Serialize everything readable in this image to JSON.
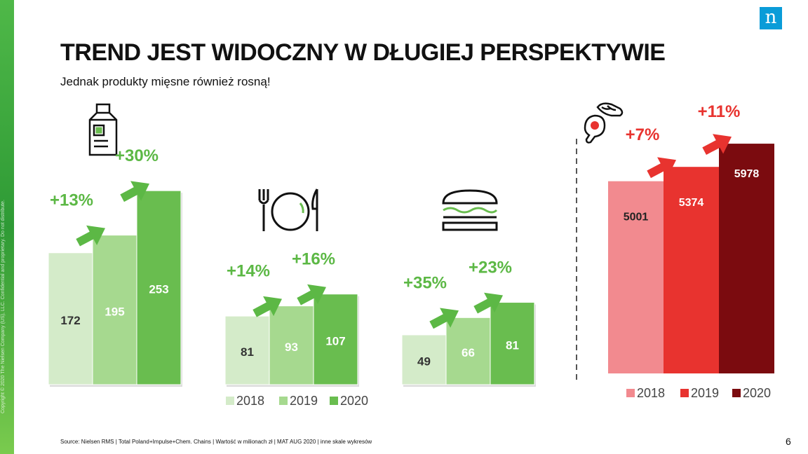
{
  "header": {
    "title": "TREND JEST WIDOCZNY W DŁUGIEJ PERSPEKTYWIE",
    "subtitle": "Jednak produkty mięsne również rosną!",
    "logo_letter": "n"
  },
  "footer": {
    "source": "Source: Nielsen RMS | Total Poland+Impulse+Chem. Chains | Wartość w milionach zł | MAT AUG 2020 | inne skale wykresów",
    "page_number": "6",
    "copyright": "Copyright © 2020 The Nielsen Company (US), LLC. Confidential and proprietary. Do not distribute."
  },
  "colors": {
    "green": [
      "#d4ebc9",
      "#a6d98f",
      "#69bd4f"
    ],
    "green_arrow": "#5cb845",
    "green_text": "#5cb845",
    "red": [
      "#f28a8f",
      "#e8332f",
      "#7b0b0f"
    ],
    "red_arrow": "#e8332f",
    "red_text": "#e8332f"
  },
  "icons": [
    "milk-carton-icon",
    "plate-cutlery-icon",
    "sandwich-icon",
    "meat-icon"
  ],
  "chart_data": [
    {
      "type": "bar",
      "categories": [
        "2018",
        "2019",
        "2020"
      ],
      "values": [
        172,
        195,
        253
      ],
      "growth_labels": [
        "+13%",
        "+30%"
      ],
      "ylim": [
        0,
        265
      ]
    },
    {
      "type": "bar",
      "categories": [
        "2018",
        "2019",
        "2020"
      ],
      "values": [
        81,
        93,
        107
      ],
      "growth_labels": [
        "+14%",
        "+16%"
      ],
      "ylim": [
        0,
        240
      ],
      "legend": [
        "2018",
        "2019",
        "2020"
      ],
      "legend_position": "bottom"
    },
    {
      "type": "bar",
      "categories": [
        "2018",
        "2019",
        "2020"
      ],
      "values": [
        49,
        66,
        81
      ],
      "growth_labels": [
        "+35%",
        "+23%"
      ],
      "ylim": [
        0,
        200
      ]
    },
    {
      "type": "bar",
      "categories": [
        "2018",
        "2019",
        "2020"
      ],
      "values": [
        5001,
        5374,
        5978
      ],
      "growth_labels": [
        "+7%",
        "+11%"
      ],
      "ylim": [
        0,
        8750
      ],
      "legend": [
        "2018",
        "2019",
        "2020"
      ],
      "legend_position": "bottom"
    }
  ]
}
